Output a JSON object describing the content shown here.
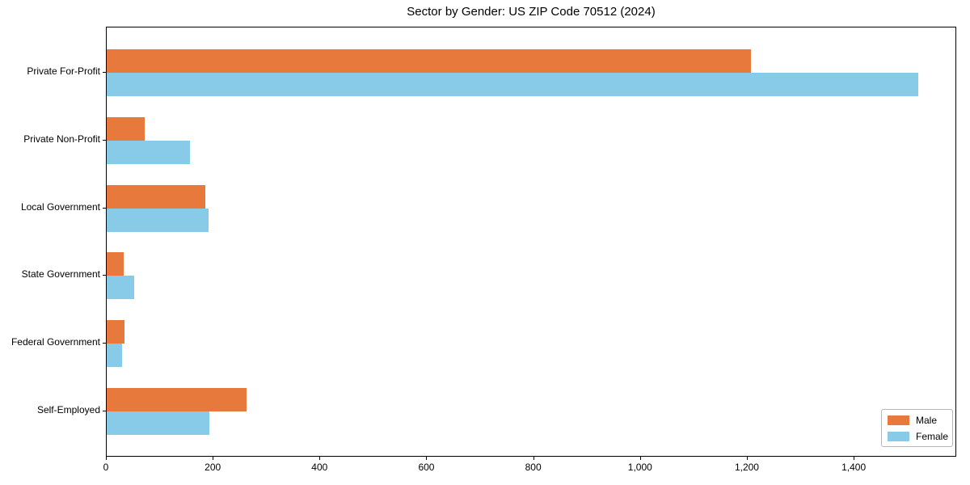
{
  "chart_data": {
    "type": "bar",
    "orientation": "horizontal",
    "title": "Sector by Gender: US ZIP Code 70512 (2024)",
    "categories": [
      "Private For-Profit",
      "Private Non-Profit",
      "Local Government",
      "State Government",
      "Federal Government",
      "Self-Employed"
    ],
    "series": [
      {
        "name": "Male",
        "color": "#E8793C",
        "values": [
          1206,
          71,
          185,
          32,
          33,
          262
        ]
      },
      {
        "name": "Female",
        "color": "#87CBE8",
        "values": [
          1520,
          156,
          191,
          52,
          29,
          192
        ]
      }
    ],
    "xlim": [
      0,
      1592
    ],
    "x_ticks": [
      0,
      200,
      400,
      600,
      800,
      1000,
      1200,
      1400
    ],
    "x_tick_labels": [
      "0",
      "200",
      "400",
      "600",
      "800",
      "1,000",
      "1,200",
      "1,400"
    ],
    "grid": false,
    "legend_position": "lower right",
    "plot_border_color": "#000000",
    "background_color": "#ffffff"
  }
}
